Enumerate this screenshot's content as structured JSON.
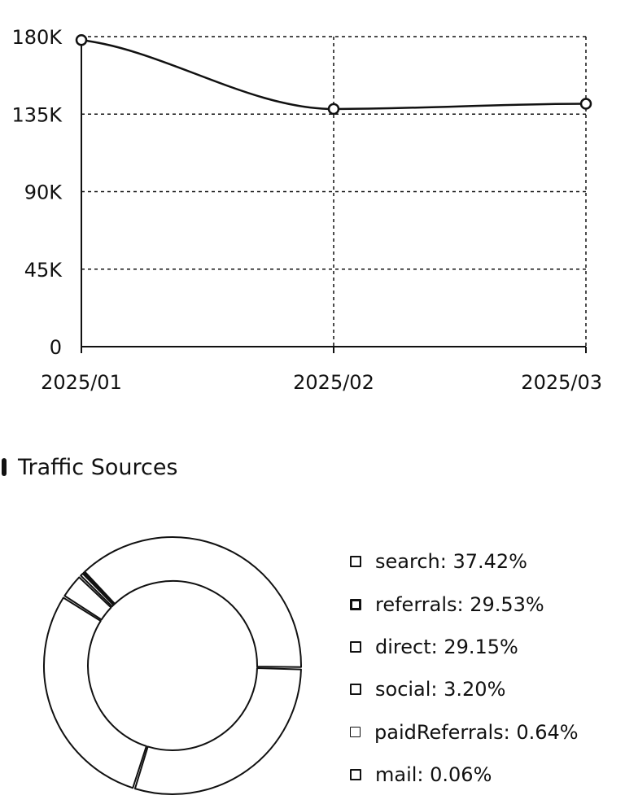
{
  "chart_data": [
    {
      "type": "line",
      "x": [
        "2025/01",
        "2025/02",
        "2025/03"
      ],
      "series": [
        {
          "values": [
            178000,
            138000,
            141000
          ]
        }
      ],
      "ylim": [
        0,
        180000
      ],
      "yticks": [
        0,
        45000,
        90000,
        135000,
        180000
      ],
      "ytick_labels": [
        "0",
        "45K",
        "90K",
        "135K",
        "180K"
      ],
      "grid": true,
      "colors": {
        "line": "#111111",
        "grid": "#111111",
        "point_fill": "#ffffff"
      }
    },
    {
      "type": "pie",
      "title": "Traffic Sources",
      "donut": true,
      "slices": [
        {
          "name": "search",
          "value": 37.42,
          "label": "search: 37.42%"
        },
        {
          "name": "referrals",
          "value": 29.53,
          "label": "referrals: 29.53%"
        },
        {
          "name": "direct",
          "value": 29.15,
          "label": "direct: 29.15%"
        },
        {
          "name": "social",
          "value": 3.2,
          "label": "social: 3.20%"
        },
        {
          "name": "paidReferrals",
          "value": 0.64,
          "label": "paidReferrals: 0.64%"
        },
        {
          "name": "mail",
          "value": 0.06,
          "label": "mail: 0.06%"
        }
      ],
      "legend": "right",
      "colors": {
        "stroke": "#111111",
        "fill": "#ffffff"
      }
    }
  ]
}
